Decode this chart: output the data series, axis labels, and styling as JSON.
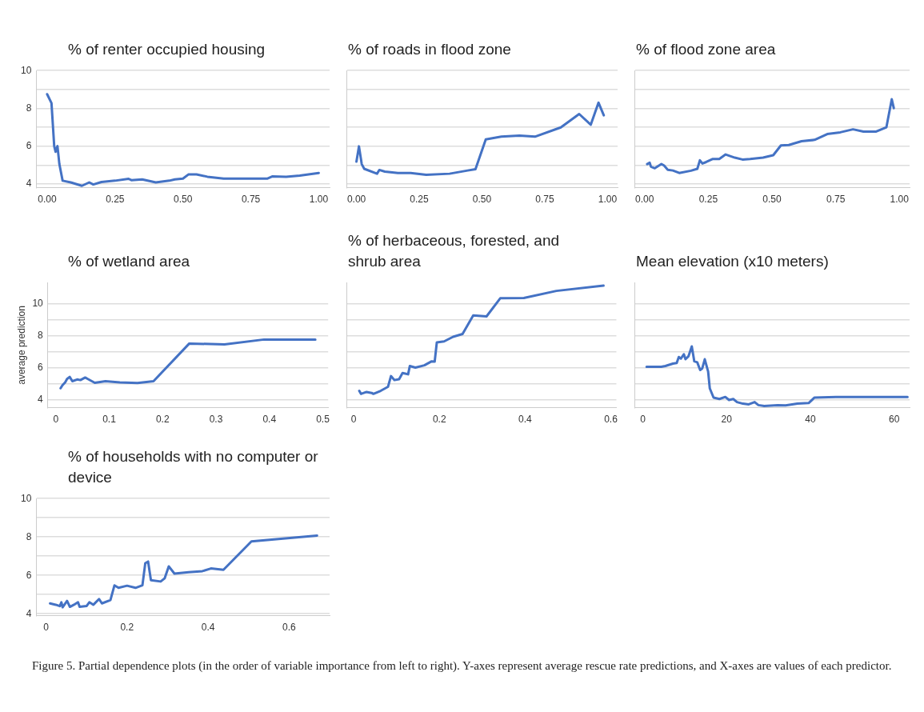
{
  "chart_data": [
    {
      "type": "line",
      "title": "% of renter occupied housing",
      "color": "#4472c4",
      "grid": "y",
      "x": [
        0,
        0.016,
        0.026,
        0.031,
        0.038,
        0.045,
        0.057,
        0.087,
        0.128,
        0.155,
        0.17,
        0.2,
        0.25,
        0.3,
        0.31,
        0.35,
        0.4,
        0.45,
        0.47,
        0.5,
        0.52,
        0.55,
        0.59,
        0.65,
        0.73,
        0.81,
        0.83,
        0.88,
        0.93,
        1.0
      ],
      "values": [
        8.75,
        8.28,
        6.0,
        5.7,
        6.0,
        5.05,
        4.17,
        4.08,
        3.9,
        4.08,
        3.97,
        4.1,
        4.17,
        4.27,
        4.2,
        4.24,
        4.08,
        4.17,
        4.24,
        4.28,
        4.5,
        4.5,
        4.38,
        4.28,
        4.28,
        4.28,
        4.4,
        4.38,
        4.44,
        4.58
      ],
      "xlim": [
        -0.04,
        1.04
      ],
      "xticks": [
        {
          "value": 0,
          "label": "0.00"
        },
        {
          "value": 0.25,
          "label": "0.25"
        },
        {
          "value": 0.5,
          "label": "0.50"
        },
        {
          "value": 0.75,
          "label": "0.75"
        },
        {
          "value": 1,
          "label": "1.00"
        }
      ],
      "ylim": [
        3.8,
        10
      ],
      "yticks": [
        4,
        {
          "value": 5,
          "label": null
        },
        6,
        {
          "value": 7,
          "label": null
        },
        8,
        {
          "value": 9,
          "label": null
        },
        10
      ]
    },
    {
      "type": "line",
      "title": "% of roads in flood zone",
      "color": "#4472c4",
      "grid": "y",
      "tick_labels": "x",
      "x": [
        0,
        0.01,
        0.021,
        0.031,
        0.082,
        0.091,
        0.113,
        0.165,
        0.216,
        0.278,
        0.371,
        0.443,
        0.474,
        0.515,
        0.577,
        0.649,
        0.711,
        0.814,
        0.887,
        0.933,
        0.964,
        0.985
      ],
      "values": [
        5.18,
        5.99,
        5.05,
        4.8,
        4.54,
        4.74,
        4.65,
        4.58,
        4.58,
        4.48,
        4.54,
        4.71,
        4.78,
        6.36,
        6.5,
        6.56,
        6.5,
        6.99,
        7.7,
        7.13,
        8.3,
        7.63
      ],
      "xlim": [
        -0.04,
        1.04
      ],
      "xticks": [
        {
          "value": 0,
          "label": "0.00"
        },
        {
          "value": 0.25,
          "label": "0.25"
        },
        {
          "value": 0.5,
          "label": "0.50"
        },
        {
          "value": 0.75,
          "label": "0.75"
        },
        {
          "value": 1,
          "label": "1.00"
        }
      ],
      "ylim": [
        3.8,
        10
      ],
      "yticks": [
        4,
        {
          "value": 5,
          "label": null
        },
        6,
        {
          "value": 7,
          "label": null
        },
        8,
        {
          "value": 9,
          "label": null
        },
        10
      ]
    },
    {
      "type": "line",
      "title": "% of flood zone area",
      "color": "#4472c4",
      "grid": "y",
      "tick_labels": "x",
      "x": [
        0.01,
        0.02,
        0.025,
        0.04,
        0.066,
        0.076,
        0.091,
        0.111,
        0.136,
        0.182,
        0.207,
        0.217,
        0.227,
        0.242,
        0.268,
        0.293,
        0.318,
        0.354,
        0.384,
        0.414,
        0.465,
        0.505,
        0.535,
        0.566,
        0.616,
        0.667,
        0.717,
        0.768,
        0.818,
        0.859,
        0.909,
        0.949,
        0.97,
        0.978
      ],
      "values": [
        5.05,
        5.12,
        4.91,
        4.83,
        5.05,
        4.98,
        4.75,
        4.71,
        4.58,
        4.7,
        4.8,
        5.25,
        5.08,
        5.16,
        5.32,
        5.32,
        5.56,
        5.39,
        5.29,
        5.32,
        5.39,
        5.52,
        6.04,
        6.06,
        6.26,
        6.33,
        6.64,
        6.73,
        6.89,
        6.77,
        6.77,
        7.0,
        8.48,
        8.01
      ],
      "xlim": [
        -0.04,
        1.04
      ],
      "xticks": [
        {
          "value": 0,
          "label": "0.00"
        },
        {
          "value": 0.25,
          "label": "0.25"
        },
        {
          "value": 0.5,
          "label": "0.50"
        },
        {
          "value": 0.75,
          "label": "0.75"
        },
        {
          "value": 1,
          "label": "1.00"
        }
      ],
      "ylim": [
        3.8,
        10
      ],
      "yticks": [
        4,
        {
          "value": 5,
          "label": null
        },
        6,
        {
          "value": 7,
          "label": null
        },
        8,
        {
          "value": 9,
          "label": null
        },
        10
      ]
    },
    {
      "type": "line",
      "title": "% of wetland area",
      "ylabel": "average prediction",
      "color": "#4472c4",
      "grid": "y",
      "x": [
        0.009,
        0.0125,
        0.0175,
        0.021,
        0.026,
        0.031,
        0.04,
        0.046,
        0.055,
        0.06,
        0.073,
        0.093,
        0.12,
        0.153,
        0.183,
        0.25,
        0.316,
        0.39,
        0.486
      ],
      "values": [
        4.71,
        4.9,
        5.08,
        5.29,
        5.42,
        5.15,
        5.26,
        5.22,
        5.38,
        5.29,
        5.05,
        5.15,
        5.08,
        5.04,
        5.15,
        7.5,
        7.44,
        7.75,
        7.75
      ],
      "xlim": [
        -0.015,
        0.51
      ],
      "xticks": [
        0,
        0.1,
        0.2,
        0.3,
        0.4,
        0.5
      ],
      "ylim": [
        3.5,
        11.3
      ],
      "yticks": [
        4,
        {
          "value": 5,
          "label": null
        },
        6,
        {
          "value": 7,
          "label": null
        },
        8,
        {
          "value": 9,
          "label": null
        },
        10
      ]
    },
    {
      "type": "line",
      "title": "% of herbaceous, forested, and shrub area",
      "color": "#4472c4",
      "grid": "y",
      "tick_labels": "x",
      "x": [
        0.013,
        0.017,
        0.03,
        0.042,
        0.046,
        0.063,
        0.08,
        0.087,
        0.095,
        0.106,
        0.114,
        0.127,
        0.131,
        0.144,
        0.165,
        0.182,
        0.189,
        0.194,
        0.211,
        0.232,
        0.254,
        0.279,
        0.31,
        0.342,
        0.397,
        0.473,
        0.583
      ],
      "values": [
        4.55,
        4.36,
        4.48,
        4.42,
        4.36,
        4.55,
        4.8,
        5.47,
        5.22,
        5.28,
        5.66,
        5.58,
        6.1,
        6.0,
        6.14,
        6.39,
        6.37,
        7.57,
        7.63,
        7.92,
        8.09,
        9.25,
        9.19,
        10.32,
        10.34,
        10.78,
        11.11
      ],
      "xlim": [
        -0.017,
        0.613
      ],
      "xticks": [
        0,
        0.2,
        0.4,
        0.6
      ],
      "ylim": [
        3.5,
        11.3
      ],
      "yticks": [
        4,
        {
          "value": 5,
          "label": null
        },
        6,
        {
          "value": 7,
          "label": null
        },
        8,
        {
          "value": 9,
          "label": null
        },
        10
      ]
    },
    {
      "type": "line",
      "title": "Mean elevation (x10 meters)",
      "color": "#4472c4",
      "grid": "y",
      "tick_labels": "x",
      "x": [
        0.9,
        4.4,
        5.4,
        7.2,
        8.1,
        8.6,
        9.1,
        9.8,
        10.2,
        10.9,
        11.7,
        12.3,
        13,
        13.7,
        14.2,
        14.8,
        15.6,
        16,
        16.9,
        18.3,
        19.7,
        20.6,
        21.6,
        22.5,
        23.9,
        25.3,
        26.7,
        27.6,
        29,
        32.2,
        34.1,
        36.9,
        39.6,
        41,
        46.1,
        63.2
      ],
      "values": [
        6.05,
        6.05,
        6.1,
        6.25,
        6.28,
        6.66,
        6.56,
        6.83,
        6.52,
        6.7,
        7.32,
        6.39,
        6.33,
        5.85,
        5.95,
        6.52,
        5.76,
        4.7,
        4.13,
        4.04,
        4.17,
        3.98,
        4.04,
        3.85,
        3.75,
        3.71,
        3.85,
        3.66,
        3.6,
        3.66,
        3.64,
        3.75,
        3.79,
        4.13,
        4.17,
        4.17
      ],
      "xlim": [
        -2,
        63.7
      ],
      "xticks": [
        0,
        20,
        40,
        60
      ],
      "ylim": [
        3.5,
        11.3
      ],
      "yticks": [
        4,
        {
          "value": 5,
          "label": null
        },
        6,
        {
          "value": 7,
          "label": null
        },
        8,
        {
          "value": 9,
          "label": null
        },
        10
      ]
    },
    {
      "type": "line",
      "title": "% of households with no computer or device",
      "color": "#4472c4",
      "grid": "y",
      "x": [
        0.01,
        0.024,
        0.034,
        0.038,
        0.041,
        0.052,
        0.059,
        0.069,
        0.079,
        0.083,
        0.1,
        0.107,
        0.117,
        0.131,
        0.138,
        0.159,
        0.169,
        0.179,
        0.2,
        0.221,
        0.238,
        0.245,
        0.252,
        0.259,
        0.283,
        0.293,
        0.303,
        0.317,
        0.352,
        0.386,
        0.407,
        0.438,
        0.507,
        0.669
      ],
      "values": [
        4.54,
        4.47,
        4.4,
        4.6,
        4.34,
        4.67,
        4.36,
        4.47,
        4.6,
        4.36,
        4.4,
        4.6,
        4.47,
        4.77,
        4.54,
        4.71,
        5.48,
        5.35,
        5.46,
        5.35,
        5.48,
        6.63,
        6.72,
        5.75,
        5.68,
        5.85,
        6.47,
        6.09,
        6.16,
        6.22,
        6.36,
        6.29,
        7.77,
        8.07
      ],
      "xlim": [
        -0.024,
        0.7
      ],
      "xticks": [
        0,
        0.2,
        0.4,
        0.6
      ],
      "ylim": [
        3.9,
        10
      ],
      "yticks": [
        4,
        {
          "value": 5,
          "label": null
        },
        6,
        {
          "value": 7,
          "label": null
        },
        8,
        {
          "value": 9,
          "label": null
        },
        10
      ],
      "annotations": [
        "Figure 5. Partial dependence plots (in the order of variable importance from left to right). Y-axes represent average rescue rate predictions, and X-axes are values of each predictor."
      ]
    }
  ]
}
